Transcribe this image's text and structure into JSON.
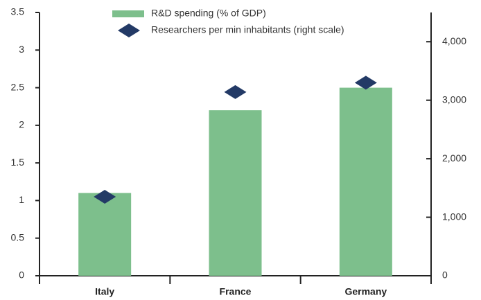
{
  "chart_data": {
    "type": "bar",
    "categories": [
      "Italy",
      "France",
      "Germany"
    ],
    "series": [
      {
        "name": "R&D spending (% of GDP)",
        "color": "#7dbf8c",
        "type": "bar",
        "values": [
          1.1,
          2.2,
          2.5
        ]
      },
      {
        "name": "Researchers per min inhabitants (right scale)",
        "color": "#233a66",
        "type": "scatter",
        "marker": "diamond",
        "axis": "y2",
        "values": [
          1350,
          3140,
          3300
        ]
      }
    ],
    "ylim": [
      0,
      3.5
    ],
    "yticks": [
      0,
      0.5,
      1,
      1.5,
      2,
      2.5,
      3,
      3.5
    ],
    "y2lim": [
      0,
      4500
    ],
    "y2ticks": [
      0,
      {
        "value": 1000,
        "label": "1,000"
      },
      {
        "value": 2000,
        "label": "2,000"
      },
      {
        "value": 3000,
        "label": "3,000"
      },
      {
        "value": 4000,
        "label": "4,000"
      }
    ],
    "legend": "top",
    "grid": false
  }
}
